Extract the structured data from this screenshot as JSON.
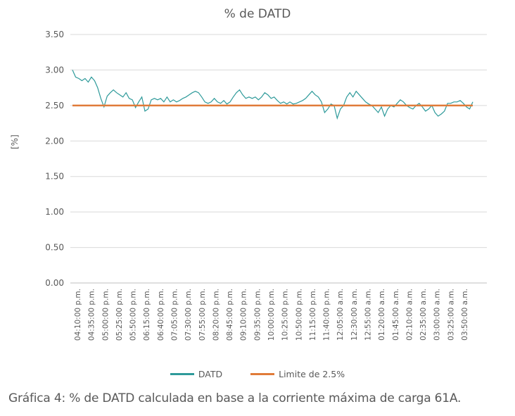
{
  "chart_data": {
    "type": "line",
    "title": "% de DATD",
    "ylabel": "[%]",
    "xlabel": "",
    "ylim": [
      0,
      3.5
    ],
    "yticks": [
      "0.00",
      "0.50",
      "1.00",
      "1.50",
      "2.00",
      "2.50",
      "3.00",
      "3.50"
    ],
    "grid": true,
    "legend_position": "bottom",
    "xtick_labels": [
      "04:10:00 p.m.",
      "04:35:00 p.m.",
      "05:00:00 p.m.",
      "05:25:00 p.m.",
      "05:50:00 p.m.",
      "06:15:00 p.m.",
      "06:40:00 p.m.",
      "07:05:00 p.m.",
      "07:30:00 p.m.",
      "07:55:00 p.m.",
      "08:20:00 p.m.",
      "08:45:00 p.m.",
      "09:10:00 p.m.",
      "09:35:00 p.m.",
      "10:00:00 p.m.",
      "10:25:00 p.m.",
      "10:50:00 p.m.",
      "11:15:00 p.m.",
      "11:40:00 p.m.",
      "12:05:00 a.m.",
      "12:30:00 a.m.",
      "12:55:00 a.m.",
      "01:20:00 a.m.",
      "01:45:00 a.m.",
      "02:10:00 a.m.",
      "02:35:00 a.m.",
      "03:00:00 a.m.",
      "03:25:00 a.m.",
      "03:50:00 a.m."
    ],
    "series": [
      {
        "name": "DATD",
        "color": "#2E9A9A",
        "values": [
          3.0,
          2.9,
          2.88,
          2.85,
          2.88,
          2.83,
          2.9,
          2.85,
          2.75,
          2.6,
          2.48,
          2.63,
          2.68,
          2.72,
          2.68,
          2.65,
          2.62,
          2.68,
          2.6,
          2.58,
          2.47,
          2.55,
          2.62,
          2.42,
          2.45,
          2.58,
          2.6,
          2.58,
          2.6,
          2.55,
          2.62,
          2.55,
          2.58,
          2.55,
          2.57,
          2.6,
          2.62,
          2.65,
          2.68,
          2.7,
          2.68,
          2.62,
          2.55,
          2.53,
          2.55,
          2.6,
          2.55,
          2.53,
          2.57,
          2.52,
          2.55,
          2.62,
          2.68,
          2.72,
          2.65,
          2.6,
          2.62,
          2.6,
          2.62,
          2.58,
          2.62,
          2.68,
          2.65,
          2.6,
          2.62,
          2.57,
          2.53,
          2.55,
          2.52,
          2.55,
          2.52,
          2.53,
          2.55,
          2.57,
          2.6,
          2.65,
          2.7,
          2.65,
          2.62,
          2.55,
          2.4,
          2.45,
          2.52,
          2.5,
          2.32,
          2.45,
          2.5,
          2.62,
          2.68,
          2.62,
          2.7,
          2.65,
          2.6,
          2.55,
          2.52,
          2.5,
          2.45,
          2.4,
          2.48,
          2.35,
          2.45,
          2.5,
          2.48,
          2.53,
          2.58,
          2.55,
          2.5,
          2.47,
          2.45,
          2.5,
          2.53,
          2.48,
          2.42,
          2.45,
          2.5,
          2.4,
          2.35,
          2.38,
          2.42,
          2.53,
          2.53,
          2.55,
          2.55,
          2.57,
          2.53,
          2.48,
          2.45,
          2.55
        ]
      },
      {
        "name": "Limite de 2.5%",
        "color": "#E07B39",
        "values": [
          2.5,
          2.5
        ]
      }
    ]
  },
  "caption": "Gráfica 4: % de DATD calculada en base a la corriente máxima de carga 61A."
}
